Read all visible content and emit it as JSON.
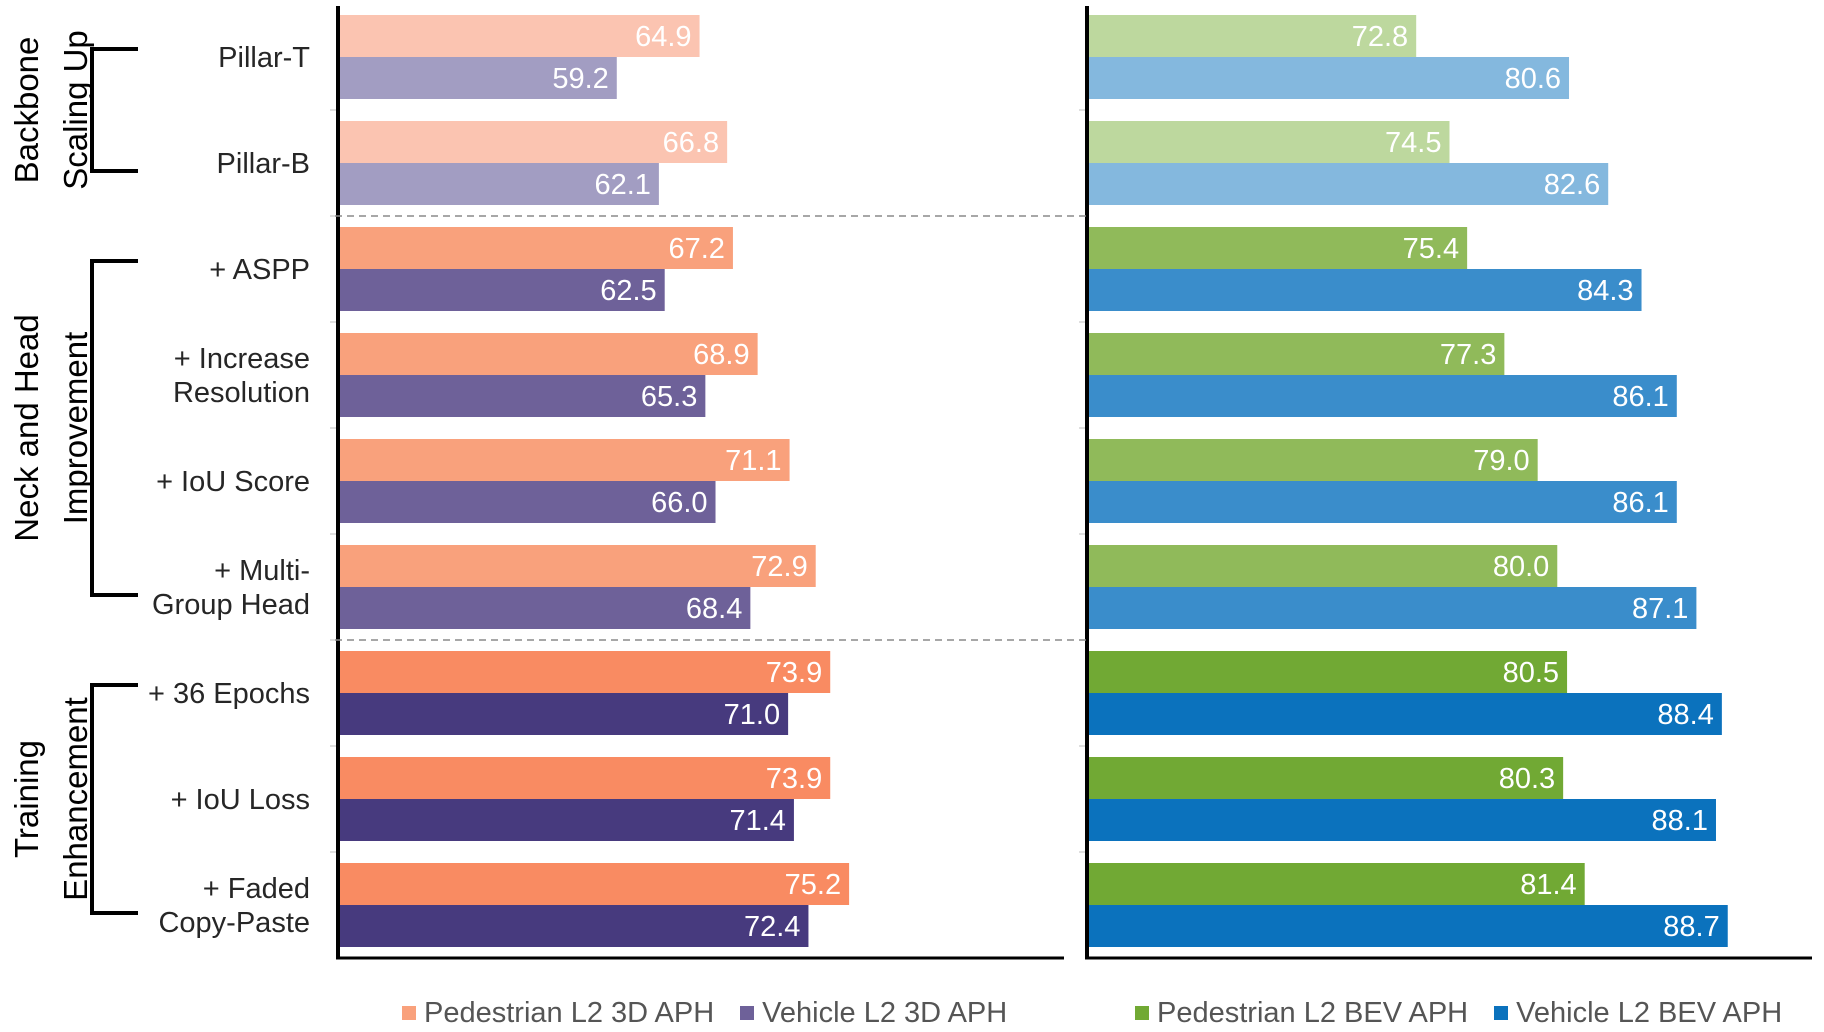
{
  "chart_data": {
    "type": "bar",
    "orientation": "horizontal",
    "categories": [
      "Pillar-T",
      "Pillar-B",
      "+ ASPP",
      "+ Increase Resolution",
      "+ IoU Score",
      "+ Multi-Group Head",
      "+ 36 Epochs",
      "+ IoU Loss",
      "+ Faded Copy-Paste"
    ],
    "category_lines": [
      [
        "Pillar-T"
      ],
      [
        "Pillar-B"
      ],
      [
        "+ ASPP"
      ],
      [
        "+ Increase",
        "Resolution"
      ],
      [
        "+ IoU Score"
      ],
      [
        "+ Multi-",
        "Group Head"
      ],
      [
        "+ 36 Epochs"
      ],
      [
        "+ IoU Loss"
      ],
      [
        "+ Faded",
        "Copy-Paste"
      ]
    ],
    "groups": [
      {
        "title_lines": [
          "Backbone",
          "Scaling Up"
        ],
        "categories": [
          "Pillar-T",
          "Pillar-B"
        ]
      },
      {
        "title_lines": [
          "Neck and Head",
          "Improvement"
        ],
        "categories": [
          "+ ASPP",
          "+ Increase Resolution",
          "+ IoU Score",
          "+ Multi-Group Head"
        ]
      },
      {
        "title_lines": [
          "Training",
          "Enhancement"
        ],
        "categories": [
          "+ 36 Epochs",
          "+ IoU Loss",
          "+ Faded Copy-Paste"
        ]
      }
    ],
    "panels": [
      {
        "name": "3D APH",
        "xlim": [
          40,
          90
        ],
        "series": [
          {
            "name": "Pedestrian L2 3D APH",
            "values": [
              64.9,
              66.8,
              67.2,
              68.9,
              71.1,
              72.9,
              73.9,
              73.9,
              75.2
            ],
            "colors": [
              "#fbc4b1",
              "#fbc4b1",
              "#f9a17c",
              "#f9a17c",
              "#f9a17c",
              "#f9a17c",
              "#f98b62",
              "#f98b62",
              "#f98b62"
            ],
            "legend_color": "#f9a17c"
          },
          {
            "name": "Vehicle L2 3D APH",
            "values": [
              59.2,
              62.1,
              62.5,
              65.3,
              66.0,
              68.4,
              71.0,
              71.4,
              72.4
            ],
            "colors": [
              "#a29dc2",
              "#a29dc2",
              "#6e6199",
              "#6e6199",
              "#6e6199",
              "#6e6199",
              "#473a7e",
              "#473a7e",
              "#473a7e"
            ],
            "legend_color": "#6e6199"
          }
        ]
      },
      {
        "name": "BEV APH",
        "xlim": [
          56,
          93
        ],
        "series": [
          {
            "name": "Pedestrian L2 BEV APH",
            "values": [
              72.8,
              74.5,
              75.4,
              77.3,
              79.0,
              80.0,
              80.5,
              80.3,
              81.4
            ],
            "colors": [
              "#bdd89e",
              "#bdd89e",
              "#90ba5a",
              "#90ba5a",
              "#90ba5a",
              "#90ba5a",
              "#71a934",
              "#71a934",
              "#71a934"
            ],
            "legend_color": "#71a934"
          },
          {
            "name": "Vehicle L2 BEV APH",
            "values": [
              80.6,
              82.6,
              84.3,
              86.1,
              86.1,
              87.1,
              88.4,
              88.1,
              88.7
            ],
            "colors": [
              "#84b8de",
              "#84b8de",
              "#3a8dcb",
              "#3a8dcb",
              "#3a8dcb",
              "#3a8dcb",
              "#0b72bd",
              "#0b72bd",
              "#0b72bd"
            ],
            "legend_color": "#0b72bd"
          }
        ]
      }
    ]
  }
}
